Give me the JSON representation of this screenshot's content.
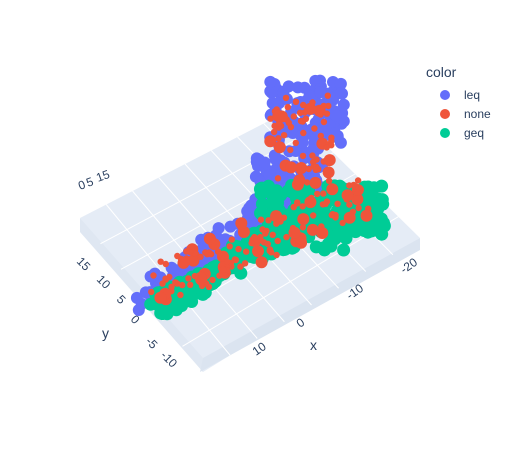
{
  "chart_data": {
    "type": "scatter3d",
    "legend": {
      "title": "color",
      "placement": "top-right",
      "items": [
        {
          "name": "leq",
          "color": "#636efa"
        },
        {
          "name": "none",
          "color": "#ef553b"
        },
        {
          "name": "geq",
          "color": "#00cc96"
        }
      ]
    },
    "axes": {
      "x": {
        "title": "x",
        "ticks": [
          "-20",
          "-10",
          "0",
          "10"
        ]
      },
      "y": {
        "title": "y",
        "ticks": [
          "15",
          "10",
          "5",
          "0",
          "-5",
          "-10"
        ]
      },
      "z": {
        "title": "",
        "ticks": [
          "0",
          "5",
          "15"
        ]
      }
    },
    "grid": true,
    "series": [
      {
        "name": "leq",
        "color": "#636efa"
      },
      {
        "name": "none",
        "color": "#ef553b"
      },
      {
        "name": "geq",
        "color": "#00cc96"
      }
    ]
  }
}
